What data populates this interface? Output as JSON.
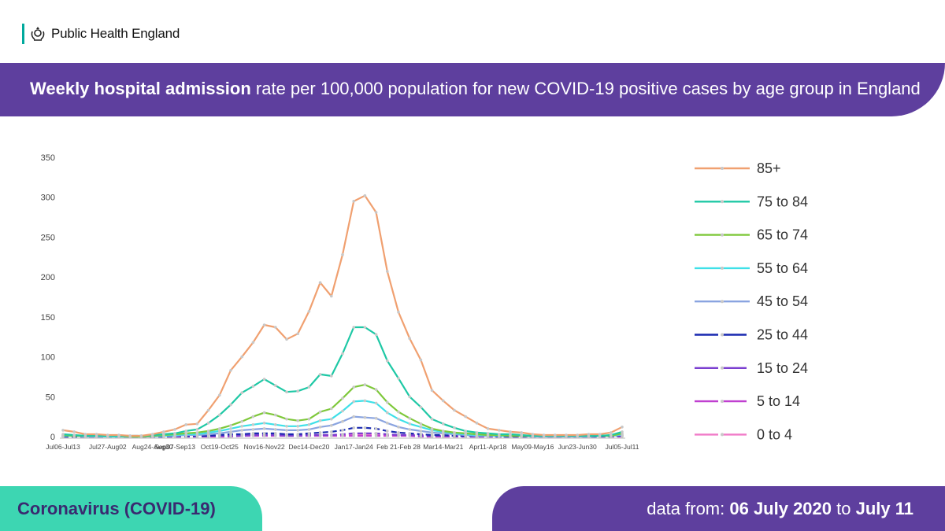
{
  "header": {
    "org_name": "Public Health England"
  },
  "title": {
    "bold": "Weekly hospital admission",
    "rest": " rate per 100,000 population for new COVID-19 positive cases by age group in England"
  },
  "footer": {
    "left": "Coronavirus (COVID-19)",
    "right_prefix": "data from: ",
    "right_start": "06 July 2020",
    "right_mid": " to ",
    "right_end": "July 11"
  },
  "colors": {
    "purple": "#5e3f9e",
    "teal": "#3dd6b2"
  },
  "chart_data": {
    "type": "line",
    "ylim": [
      0,
      350
    ],
    "yticks": [
      0,
      50,
      100,
      150,
      200,
      250,
      300,
      350
    ],
    "grid": false,
    "legend_position": "right",
    "tick_labels": [
      "Jul06-Jul13",
      "Jul27-Aug02",
      "Aug24-Aug30",
      "Sep07-Sep13",
      "Oct19-Oct25",
      "Nov16-Nov22",
      "Dec14-Dec20",
      "Jan17-Jan24",
      "Feb 21-Feb 28",
      "Mar14-Mar21",
      "Apr11-Apr18",
      "May09-May16",
      "Jun23-Jun30",
      "Jul05-Jul11"
    ],
    "tick_positions": [
      0,
      4,
      8,
      10,
      14,
      18,
      22,
      26,
      30,
      34,
      38,
      42,
      46,
      50
    ],
    "n_points": 51,
    "series": [
      {
        "name": "85+",
        "color": "#f0a070",
        "dash": false,
        "values": [
          8,
          6,
          3,
          3,
          2,
          2,
          1,
          1,
          3,
          6,
          9,
          15,
          16,
          33,
          52,
          83,
          100,
          118,
          140,
          137,
          122,
          129,
          157,
          193,
          176,
          228,
          295,
          302,
          281,
          207,
          156,
          123,
          96,
          58,
          45,
          33,
          25,
          17,
          10,
          8,
          6,
          5,
          3,
          2,
          2,
          2,
          2,
          3,
          3,
          5,
          12
        ]
      },
      {
        "name": "75 to 84",
        "color": "#1ec8a5",
        "dash": false,
        "values": [
          3,
          2,
          1,
          1,
          1,
          1,
          1,
          1,
          2,
          3,
          4,
          7,
          9,
          17,
          27,
          40,
          55,
          63,
          72,
          64,
          56,
          57,
          62,
          78,
          76,
          104,
          137,
          137,
          128,
          95,
          73,
          50,
          37,
          22,
          16,
          11,
          7,
          5,
          4,
          3,
          3,
          2,
          1,
          1,
          1,
          1,
          1,
          1,
          1,
          2,
          6
        ]
      },
      {
        "name": "65 to 74",
        "color": "#7ec83a",
        "dash": false,
        "values": [
          2,
          1,
          1,
          1,
          1,
          1,
          0,
          0,
          1,
          2,
          3,
          4,
          5,
          7,
          10,
          14,
          19,
          25,
          30,
          27,
          22,
          20,
          22,
          31,
          35,
          48,
          62,
          65,
          59,
          43,
          31,
          23,
          16,
          10,
          7,
          5,
          4,
          3,
          2,
          2,
          1,
          1,
          1,
          1,
          1,
          1,
          1,
          1,
          1,
          1,
          4
        ]
      },
      {
        "name": "55 to 64",
        "color": "#3ee0e8",
        "dash": false,
        "values": [
          1,
          1,
          1,
          1,
          0,
          0,
          0,
          0,
          1,
          1,
          2,
          3,
          3,
          5,
          7,
          10,
          13,
          15,
          17,
          15,
          13,
          13,
          15,
          20,
          22,
          32,
          44,
          45,
          42,
          30,
          22,
          16,
          12,
          8,
          6,
          4,
          3,
          2,
          2,
          1,
          1,
          1,
          1,
          1,
          1,
          1,
          1,
          1,
          1,
          1,
          3
        ]
      },
      {
        "name": "45 to 54",
        "color": "#8aa4e0",
        "dash": false,
        "values": [
          1,
          1,
          0,
          0,
          0,
          0,
          0,
          0,
          0,
          1,
          1,
          2,
          2,
          3,
          4,
          6,
          8,
          9,
          10,
          9,
          8,
          8,
          9,
          12,
          14,
          19,
          25,
          24,
          23,
          17,
          12,
          9,
          7,
          5,
          4,
          3,
          2,
          1,
          1,
          1,
          1,
          1,
          0,
          0,
          0,
          0,
          0,
          0,
          1,
          1,
          2
        ]
      },
      {
        "name": "25 to 44",
        "color": "#1a2ab0",
        "dash": true,
        "values": [
          0,
          0,
          0,
          0,
          0,
          0,
          0,
          0,
          0,
          0,
          1,
          1,
          1,
          1,
          2,
          3,
          3,
          4,
          4,
          4,
          3,
          3,
          4,
          5,
          6,
          8,
          11,
          11,
          10,
          7,
          5,
          4,
          3,
          2,
          2,
          1,
          1,
          1,
          1,
          0,
          0,
          0,
          0,
          0,
          0,
          0,
          0,
          0,
          0,
          1,
          1
        ]
      },
      {
        "name": "15 to 24",
        "color": "#7b3fd0",
        "dash": true,
        "values": [
          0,
          0,
          0,
          0,
          0,
          0,
          0,
          0,
          0,
          0,
          0,
          0,
          0,
          1,
          1,
          1,
          1,
          2,
          2,
          2,
          1,
          1,
          2,
          2,
          2,
          3,
          4,
          4,
          4,
          3,
          2,
          2,
          1,
          1,
          1,
          1,
          0,
          0,
          0,
          0,
          0,
          0,
          0,
          0,
          0,
          0,
          0,
          0,
          0,
          0,
          1
        ]
      },
      {
        "name": "5 to 14",
        "color": "#c040d0",
        "dash": true,
        "values": [
          0,
          0,
          0,
          0,
          0,
          0,
          0,
          0,
          0,
          0,
          0,
          0,
          0,
          0,
          0,
          0,
          1,
          1,
          1,
          1,
          1,
          1,
          1,
          1,
          1,
          1,
          1,
          1,
          1,
          1,
          1,
          1,
          0,
          0,
          0,
          0,
          0,
          0,
          0,
          0,
          0,
          0,
          0,
          0,
          0,
          0,
          0,
          0,
          0,
          0,
          0
        ]
      },
      {
        "name": "0 to 4",
        "color": "#f07ac8",
        "dash": true,
        "values": [
          1,
          1,
          1,
          1,
          1,
          1,
          1,
          1,
          1,
          1,
          1,
          1,
          1,
          1,
          1,
          1,
          2,
          2,
          2,
          2,
          2,
          2,
          2,
          2,
          2,
          2,
          3,
          3,
          3,
          2,
          2,
          2,
          2,
          1,
          1,
          1,
          1,
          1,
          1,
          1,
          1,
          1,
          1,
          1,
          1,
          1,
          1,
          1,
          1,
          1,
          1
        ]
      }
    ]
  }
}
